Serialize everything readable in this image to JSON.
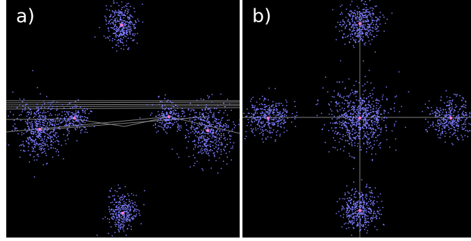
{
  "figure": {
    "panels": [
      {
        "label": "a)"
      },
      {
        "label": "b)"
      }
    ]
  },
  "colors": {
    "background": "#000000",
    "point": "#7d7dff",
    "point_core": "#ff7ad0",
    "line": "#9a9a9a",
    "label": "#ffffff"
  }
}
